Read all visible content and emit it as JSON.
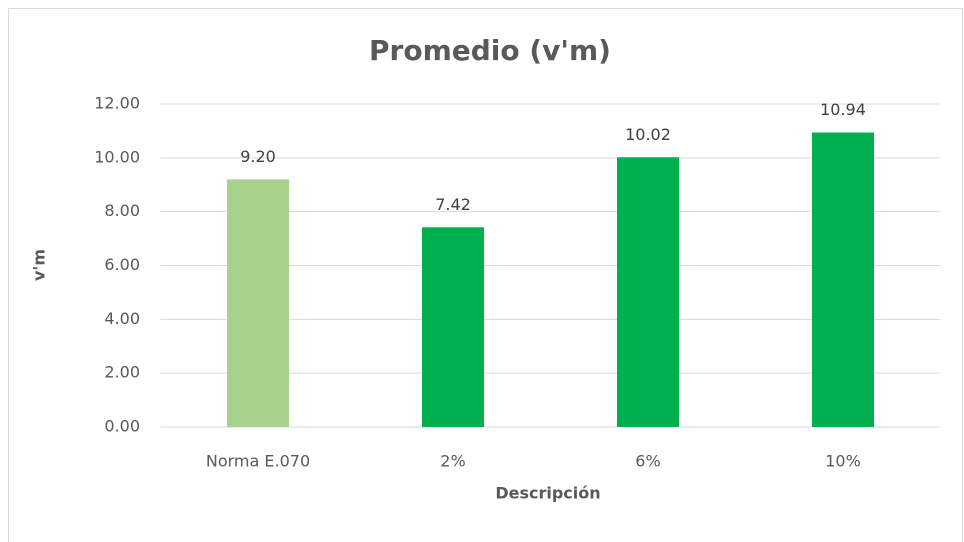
{
  "chart_data": {
    "type": "bar",
    "title": "Promedio (v'm)",
    "x_label": "Descripción",
    "y_label": "v'm",
    "categories": [
      "Norma E.070",
      "2%",
      "6%",
      "10%"
    ],
    "values": [
      9.2,
      7.42,
      10.02,
      10.94
    ],
    "value_labels": [
      "9.20",
      "7.42",
      "10.02",
      "10.94"
    ],
    "colors": [
      "#a9d18e",
      "#00b050",
      "#00b050",
      "#00b050"
    ],
    "ylim": [
      0,
      12
    ],
    "yticks": [
      {
        "value": 0,
        "label": "0.00"
      },
      {
        "value": 2,
        "label": "2.00"
      },
      {
        "value": 4,
        "label": "4.00"
      },
      {
        "value": 6,
        "label": "6.00"
      },
      {
        "value": 8,
        "label": "8.00"
      },
      {
        "value": 10,
        "label": "10.00"
      },
      {
        "value": 12,
        "label": "12.00"
      }
    ],
    "grid": true
  }
}
